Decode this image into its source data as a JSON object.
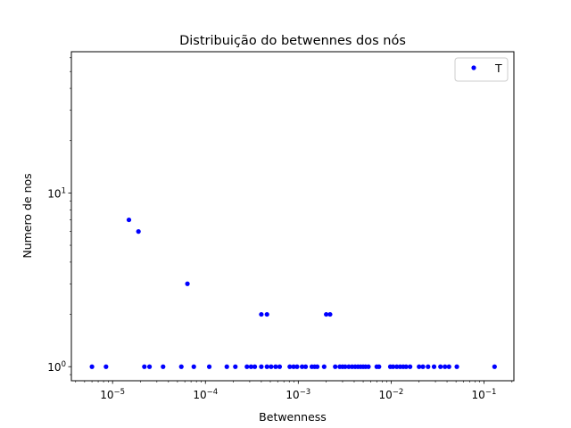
{
  "chart_data": {
    "type": "scatter",
    "title": "Distribuição do betwennes dos nós",
    "xlabel": "Betwenness",
    "ylabel": "Numero de nos",
    "xscale": "log",
    "yscale": "log",
    "xlim": [
      3.6e-06,
      0.21
    ],
    "ylim": [
      0.83,
      65
    ],
    "grid": false,
    "legend_position": "upper right",
    "x_ticks": [
      {
        "value": 1e-05,
        "base": "10",
        "exp": "−5"
      },
      {
        "value": 0.0001,
        "base": "10",
        "exp": "−4"
      },
      {
        "value": 0.001,
        "base": "10",
        "exp": "−3"
      },
      {
        "value": 0.01,
        "base": "10",
        "exp": "−2"
      },
      {
        "value": 0.1,
        "base": "10",
        "exp": "−1"
      }
    ],
    "y_ticks": [
      {
        "value": 1,
        "base": "10",
        "exp": "0"
      },
      {
        "value": 10,
        "base": "10",
        "exp": "1"
      }
    ],
    "series": [
      {
        "name": "T",
        "color": "#0000ff",
        "marker": "point",
        "x": [
          1.5e-05,
          1.9e-05,
          6.4e-05,
          0.0004,
          0.00046,
          0.002,
          0.0022,
          6e-06,
          8.5e-06,
          2.2e-05,
          2.5e-05,
          3.5e-05,
          5.5e-05,
          7.5e-05,
          0.00011,
          0.00017,
          0.00021,
          0.00028,
          0.00031,
          0.00034,
          0.0004,
          0.00046,
          0.00051,
          0.00057,
          0.00063,
          0.00081,
          0.00089,
          0.00097,
          0.0011,
          0.0012,
          0.0014,
          0.0015,
          0.0016,
          0.0019,
          0.0025,
          0.0028,
          0.003,
          0.0032,
          0.0035,
          0.0038,
          0.0041,
          0.0044,
          0.0047,
          0.005,
          0.0053,
          0.0057,
          0.007,
          0.0074,
          0.0098,
          0.0105,
          0.0115,
          0.0125,
          0.0135,
          0.0145,
          0.016,
          0.02,
          0.022,
          0.025,
          0.029,
          0.034,
          0.038,
          0.042,
          0.051,
          0.13
        ],
        "y": [
          7,
          6,
          3,
          2,
          2,
          2,
          2,
          1,
          1,
          1,
          1,
          1,
          1,
          1,
          1,
          1,
          1,
          1,
          1,
          1,
          1,
          1,
          1,
          1,
          1,
          1,
          1,
          1,
          1,
          1,
          1,
          1,
          1,
          1,
          1,
          1,
          1,
          1,
          1,
          1,
          1,
          1,
          1,
          1,
          1,
          1,
          1,
          1,
          1,
          1,
          1,
          1,
          1,
          1,
          1,
          1,
          1,
          1,
          1,
          1,
          1,
          1,
          1,
          1
        ]
      }
    ]
  }
}
